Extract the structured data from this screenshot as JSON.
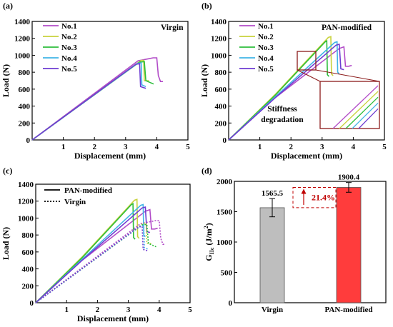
{
  "chart_data": [
    {
      "panel": "(a)",
      "type": "line",
      "annotation": "Virgin",
      "xlabel": "Displacement (mm)",
      "ylabel": "Load (N)",
      "xlim": [
        0,
        5
      ],
      "ylim": [
        0,
        1400
      ],
      "xticks": [
        "1",
        "2",
        "3",
        "4",
        "5"
      ],
      "yticks": [
        "0",
        "200",
        "400",
        "600",
        "800",
        "1000",
        "1200",
        "1400"
      ],
      "legend_position": "top-left",
      "series": [
        {
          "name": "No.1",
          "color": "#B24CC8",
          "x": [
            0,
            3.4,
            3.75,
            3.88,
            4.0,
            4.05,
            4.12,
            4.2
          ],
          "y": [
            0,
            935,
            960,
            970,
            970,
            760,
            690,
            690
          ]
        },
        {
          "name": "No.2",
          "color": "#C8D23C",
          "x": [
            0,
            3.5,
            3.58,
            3.6,
            3.75
          ],
          "y": [
            0,
            940,
            940,
            700,
            700
          ]
        },
        {
          "name": "No.3",
          "color": "#2DBE3C",
          "x": [
            0,
            3.45,
            3.6,
            3.65,
            3.9
          ],
          "y": [
            0,
            920,
            925,
            700,
            660
          ]
        },
        {
          "name": "No.4",
          "color": "#41B4E6",
          "x": [
            0,
            3.38,
            3.5,
            3.52,
            3.65
          ],
          "y": [
            0,
            905,
            910,
            650,
            630
          ]
        },
        {
          "name": "No.5",
          "color": "#6E3CD2",
          "x": [
            0,
            3.33,
            3.45,
            3.48,
            3.65
          ],
          "y": [
            0,
            895,
            900,
            630,
            610
          ]
        }
      ]
    },
    {
      "panel": "(b)",
      "type": "line",
      "annotation": "PAN-modified",
      "inset_annotation": "Stiffness degradation",
      "xlabel": "Displacement (mm)",
      "ylabel": "Load (N)",
      "xlim": [
        0,
        5
      ],
      "ylim": [
        0,
        1400
      ],
      "xticks": [
        "1",
        "2",
        "3",
        "4",
        "5"
      ],
      "yticks": [
        "0",
        "200",
        "400",
        "600",
        "800",
        "1000",
        "1200",
        "1400"
      ],
      "legend_position": "top-left",
      "series": [
        {
          "name": "No.1",
          "color": "#B24CC8",
          "x": [
            0,
            1.5,
            3.55,
            3.7,
            3.75,
            3.85,
            3.95
          ],
          "y": [
            0,
            500,
            1080,
            1100,
            870,
            870,
            880
          ]
        },
        {
          "name": "No.2",
          "color": "#C8D23C",
          "x": [
            0,
            1.5,
            3.2,
            3.28,
            3.3,
            3.35
          ],
          "y": [
            0,
            540,
            1210,
            1220,
            780,
            760
          ]
        },
        {
          "name": "No.3",
          "color": "#2DBE3C",
          "x": [
            0,
            1.5,
            3.1,
            3.15,
            3.17,
            3.22
          ],
          "y": [
            0,
            530,
            1160,
            1170,
            770,
            750
          ]
        },
        {
          "name": "No.4",
          "color": "#41B4E6",
          "x": [
            0,
            1.5,
            3.4,
            3.48,
            3.5,
            3.55
          ],
          "y": [
            0,
            510,
            1150,
            1160,
            800,
            780
          ]
        },
        {
          "name": "No.5",
          "color": "#6E3CD2",
          "x": [
            0,
            1.5,
            3.45,
            3.55,
            3.6,
            3.7
          ],
          "y": [
            0,
            500,
            1120,
            1130,
            840,
            830
          ]
        }
      ]
    },
    {
      "panel": "(c)",
      "type": "line",
      "xlabel": "Displacement (mm)",
      "ylabel": "Load (N)",
      "xlim": [
        0,
        5
      ],
      "ylim": [
        0,
        1400
      ],
      "xticks": [
        "1",
        "2",
        "3",
        "4",
        "5"
      ],
      "yticks": [
        "0",
        "200",
        "400",
        "600",
        "800",
        "1000",
        "1200",
        "1400"
      ],
      "legend_position": "top-left",
      "legend": [
        {
          "label": "PAN-modified",
          "style": "solid"
        },
        {
          "label": "Virgin",
          "style": "dotted"
        }
      ]
    },
    {
      "panel": "(d)",
      "type": "bar",
      "categories": [
        "Virgin",
        "PAN-modified"
      ],
      "values": [
        1565.5,
        1900.4
      ],
      "value_labels": [
        "1565.5",
        "1900.4"
      ],
      "errors": [
        150,
        80
      ],
      "colors": [
        "#BEBEBE",
        "#FF3C3C"
      ],
      "ylim": [
        0,
        2000
      ],
      "yticks": [
        "0",
        "500",
        "1000",
        "1500",
        "2000"
      ],
      "ylabel_main": "G",
      "ylabel_sub": "IIc",
      "ylabel_unit": " (J/m",
      "ylabel_sup": "2",
      "ylabel_close": ")",
      "increase_label": "21.4%"
    }
  ]
}
